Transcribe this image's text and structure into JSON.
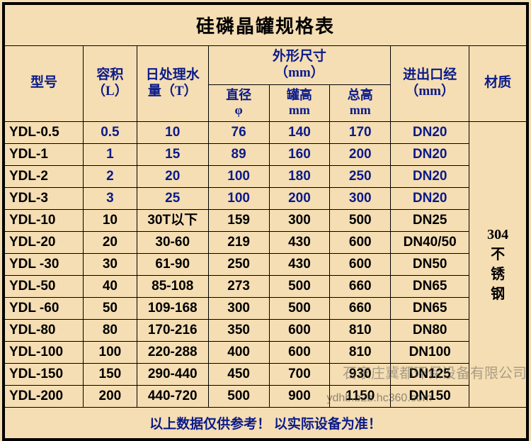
{
  "title": "硅磷晶罐规格表",
  "headers": {
    "model": "型号",
    "volume": "容积\n（L）",
    "daily": "日处理水\n量（T）",
    "dims": "外形尺寸\n（mm）",
    "inlet": "进出口经\n（mm）",
    "material": "材质",
    "diameter": "直径\nφ",
    "height": "罐高\nmm",
    "total": "总高\nmm"
  },
  "material_value": "304\n不\n锈\n钢",
  "rows": [
    {
      "model": "YDL-0.5",
      "vol": "0.5",
      "daily": "10",
      "dia": "76",
      "h": "140",
      "th": "170",
      "inlet": "DN20",
      "blue": true
    },
    {
      "model": "YDL-1",
      "vol": "1",
      "daily": "15",
      "dia": "89",
      "h": "160",
      "th": "200",
      "inlet": "DN20",
      "blue": true
    },
    {
      "model": "YDL-2",
      "vol": "2",
      "daily": "20",
      "dia": "100",
      "h": "180",
      "th": "250",
      "inlet": "DN20",
      "blue": true
    },
    {
      "model": "YDL-3",
      "vol": "3",
      "daily": "25",
      "dia": "100",
      "h": "200",
      "th": "300",
      "inlet": "DN20",
      "blue": true
    },
    {
      "model": "YDL-10",
      "vol": "10",
      "daily": "30T以下",
      "dia": "159",
      "h": "300",
      "th": "500",
      "inlet": "DN25",
      "blue": false
    },
    {
      "model": "YDL-20",
      "vol": "20",
      "daily": "30-60",
      "dia": "219",
      "h": "430",
      "th": "600",
      "inlet": "DN40/50",
      "blue": false
    },
    {
      "model": "YDL -30",
      "vol": "30",
      "daily": "61-90",
      "dia": "250",
      "h": "430",
      "th": "600",
      "inlet": "DN50",
      "blue": false
    },
    {
      "model": "YDL-50",
      "vol": "40",
      "daily": "85-108",
      "dia": "273",
      "h": "500",
      "th": "660",
      "inlet": "DN65",
      "blue": false
    },
    {
      "model": "YDL -60",
      "vol": "50",
      "daily": "109-168",
      "dia": "300",
      "h": "500",
      "th": "660",
      "inlet": "DN65",
      "blue": false
    },
    {
      "model": "YDL-80",
      "vol": "80",
      "daily": "170-216",
      "dia": "350",
      "h": "600",
      "th": "810",
      "inlet": "DN80",
      "blue": false
    },
    {
      "model": "YDL-100",
      "vol": "100",
      "daily": "220-288",
      "dia": "400",
      "h": "600",
      "th": "810",
      "inlet": "DN100",
      "blue": false
    },
    {
      "model": "YDL-150",
      "vol": "150",
      "daily": "290-440",
      "dia": "450",
      "h": "700",
      "th": "930",
      "inlet": "DN125",
      "blue": false
    },
    {
      "model": "YDL-200",
      "vol": "200",
      "daily": "440-720",
      "dia": "500",
      "h": "900",
      "th": "1150",
      "inlet": "DN150",
      "blue": false
    }
  ],
  "footer": "以上数据仅供参考！ 以实际设备为准！",
  "watermark1": "石家庄冀都环保设备有限公司",
  "watermark2": "ydhb.b2b.hc360.com",
  "colors": {
    "bg": "#f5deb3",
    "border": "#000000",
    "header_text": "#0a1a8a",
    "body_text": "#000000"
  }
}
